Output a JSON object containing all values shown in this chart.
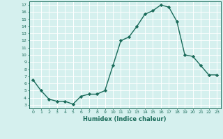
{
  "x": [
    0,
    1,
    2,
    3,
    4,
    5,
    6,
    7,
    8,
    9,
    10,
    11,
    12,
    13,
    14,
    15,
    16,
    17,
    18,
    19,
    20,
    21,
    22,
    23
  ],
  "y": [
    6.5,
    5.0,
    3.8,
    3.5,
    3.5,
    3.1,
    4.2,
    4.5,
    4.5,
    5.0,
    8.5,
    12.0,
    12.5,
    14.0,
    15.7,
    16.2,
    17.0,
    16.7,
    14.7,
    10.0,
    9.8,
    8.5,
    7.2,
    7.2
  ],
  "line_color": "#1a6b5a",
  "marker": "D",
  "marker_size": 2.2,
  "bg_color": "#d5f0ee",
  "grid_color": "#ffffff",
  "xlabel": "Humidex (Indice chaleur)",
  "xlim": [
    -0.5,
    23.5
  ],
  "ylim": [
    2.5,
    17.5
  ],
  "yticks": [
    3,
    4,
    5,
    6,
    7,
    8,
    9,
    10,
    11,
    12,
    13,
    14,
    15,
    16,
    17
  ],
  "xticks": [
    0,
    1,
    2,
    3,
    4,
    5,
    6,
    7,
    8,
    9,
    10,
    11,
    12,
    13,
    14,
    15,
    16,
    17,
    18,
    19,
    20,
    21,
    22,
    23
  ]
}
